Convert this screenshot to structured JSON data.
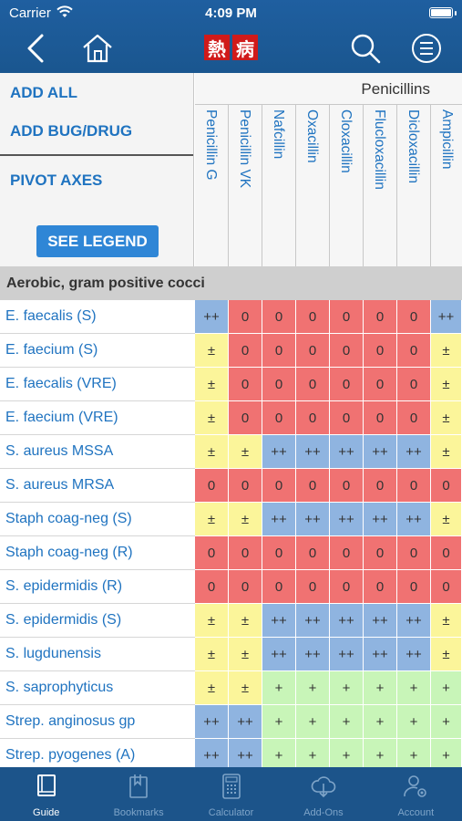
{
  "status": {
    "carrier": "Carrier",
    "time": "4:09 PM"
  },
  "header": {
    "logo_chars": [
      "熱",
      "病"
    ]
  },
  "controls": {
    "add_all": "ADD ALL",
    "add_bug_drug": "ADD BUG/DRUG",
    "pivot_axes": "PIVOT AXES",
    "see_legend": "SEE LEGEND"
  },
  "group_label": "Penicillins",
  "columns": [
    "Penicillin G",
    "Penicillin VK",
    "Nafcillin",
    "Oxacillin",
    "Cloxacillin",
    "Flucloxacillin",
    "Dicloxacillin",
    "Ampicillin"
  ],
  "section": "Aerobic, gram positive cocci",
  "rows": [
    {
      "organism": "E. faecalis (S)",
      "values": [
        "++",
        "0",
        "0",
        "0",
        "0",
        "0",
        "0",
        "++"
      ]
    },
    {
      "organism": "E. faecium (S)",
      "values": [
        "±",
        "0",
        "0",
        "0",
        "0",
        "0",
        "0",
        "±"
      ]
    },
    {
      "organism": "E. faecalis (VRE)",
      "values": [
        "±",
        "0",
        "0",
        "0",
        "0",
        "0",
        "0",
        "±"
      ]
    },
    {
      "organism": "E. faecium (VRE)",
      "values": [
        "±",
        "0",
        "0",
        "0",
        "0",
        "0",
        "0",
        "±"
      ]
    },
    {
      "organism": "S. aureus MSSA",
      "values": [
        "±",
        "±",
        "++",
        "++",
        "++",
        "++",
        "++",
        "±"
      ]
    },
    {
      "organism": "S. aureus MRSA",
      "values": [
        "0",
        "0",
        "0",
        "0",
        "0",
        "0",
        "0",
        "0"
      ]
    },
    {
      "organism": "Staph coag-neg (S)",
      "values": [
        "±",
        "±",
        "++",
        "++",
        "++",
        "++",
        "++",
        "±"
      ]
    },
    {
      "organism": "Staph coag-neg (R)",
      "values": [
        "0",
        "0",
        "0",
        "0",
        "0",
        "0",
        "0",
        "0"
      ]
    },
    {
      "organism": "S. epidermidis (R)",
      "values": [
        "0",
        "0",
        "0",
        "0",
        "0",
        "0",
        "0",
        "0"
      ]
    },
    {
      "organism": "S. epidermidis (S)",
      "values": [
        "±",
        "±",
        "++",
        "++",
        "++",
        "++",
        "++",
        "±"
      ]
    },
    {
      "organism": "S. lugdunensis",
      "values": [
        "±",
        "±",
        "++",
        "++",
        "++",
        "++",
        "++",
        "±"
      ]
    },
    {
      "organism": "S. saprophyticus",
      "values": [
        "±",
        "±",
        "+",
        "+",
        "+",
        "+",
        "+",
        "+"
      ]
    },
    {
      "organism": "Strep. anginosus gp",
      "values": [
        "++",
        "++",
        "+",
        "+",
        "+",
        "+",
        "+",
        "+"
      ]
    },
    {
      "organism": "Strep. pyogenes (A)",
      "values": [
        "++",
        "++",
        "+",
        "+",
        "+",
        "+",
        "+",
        "+"
      ]
    }
  ],
  "colors": {
    "++": "#8fb4e0",
    "+": "#c8f5b8",
    "±": "#fbf59a",
    "0": "#f07272",
    "header_bg": "#1f5fa0",
    "tabbar_bg": "#1c548a"
  },
  "tabs": [
    {
      "label": "Guide",
      "icon": "book-icon",
      "active": true
    },
    {
      "label": "Bookmarks",
      "icon": "bookmark-icon",
      "active": false
    },
    {
      "label": "Calculator",
      "icon": "calculator-icon",
      "active": false
    },
    {
      "label": "Add-Ons",
      "icon": "cloud-download-icon",
      "active": false
    },
    {
      "label": "Account",
      "icon": "account-icon",
      "active": false
    }
  ]
}
